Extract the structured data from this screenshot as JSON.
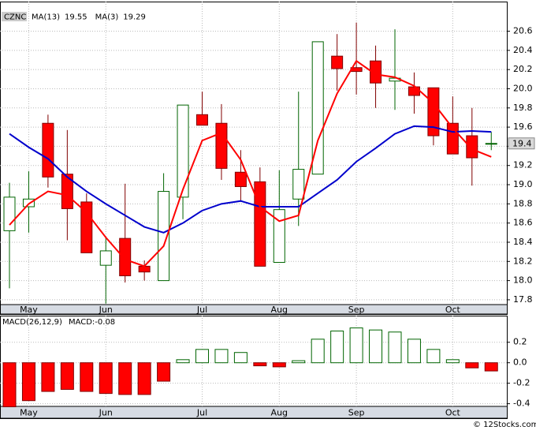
{
  "title": "(CZNC)",
  "watermark": "© 12Stocks.com",
  "chart_data": [
    {
      "type": "candlestick",
      "symbol": "CZNC",
      "categories": [
        null,
        "May",
        null,
        null,
        null,
        "Jun",
        null,
        null,
        null,
        null,
        "Jul",
        null,
        null,
        null,
        "Aug",
        null,
        null,
        null,
        "Sep",
        null,
        null,
        null,
        null,
        "Oct",
        null,
        null
      ],
      "open": [
        18.52,
        18.77,
        19.64,
        19.11,
        18.82,
        18.16,
        18.44,
        18.15,
        18.0,
        18.87,
        19.73,
        19.64,
        19.13,
        19.03,
        18.19,
        18.85,
        19.11,
        20.34,
        20.22,
        20.29,
        20.08,
        20.02,
        20.01,
        19.64,
        19.51,
        19.43
      ],
      "high": [
        19.02,
        19.14,
        19.73,
        19.57,
        18.91,
        18.46,
        19.01,
        18.21,
        19.12,
        19.83,
        19.97,
        19.84,
        19.36,
        19.18,
        19.15,
        19.97,
        20.49,
        20.57,
        20.69,
        20.45,
        20.62,
        20.17,
        20.01,
        19.92,
        19.8,
        19.55
      ],
      "low": [
        17.92,
        18.5,
        18.97,
        18.42,
        18.29,
        17.76,
        17.98,
        18.0,
        18.0,
        18.64,
        19.62,
        19.05,
        18.83,
        18.15,
        18.19,
        18.57,
        19.11,
        19.98,
        19.94,
        19.8,
        19.78,
        19.74,
        19.41,
        19.32,
        18.99,
        19.36
      ],
      "close": [
        18.87,
        18.85,
        19.08,
        18.75,
        18.29,
        18.31,
        18.05,
        18.09,
        18.93,
        19.83,
        19.62,
        19.17,
        18.98,
        18.15,
        18.74,
        19.16,
        20.49,
        20.21,
        20.18,
        20.06,
        20.11,
        19.93,
        19.51,
        19.32,
        19.28,
        19.43
      ],
      "up_color": "#006400",
      "down_color": "#ff0000",
      "series": [
        {
          "name": "MA(13)",
          "color": "#0000cc",
          "legend_value": "19.55",
          "values": [
            19.53,
            19.39,
            19.27,
            19.08,
            18.93,
            18.8,
            18.68,
            18.56,
            18.5,
            18.6,
            18.73,
            18.8,
            18.83,
            18.77,
            18.77,
            18.77,
            18.91,
            19.05,
            19.24,
            19.38,
            19.53,
            19.61,
            19.6,
            19.55,
            19.56,
            19.55
          ]
        },
        {
          "name": "MA(3)",
          "color": "#ff0000",
          "legend_value": "19.29",
          "values": [
            18.58,
            18.8,
            18.93,
            18.89,
            18.71,
            18.45,
            18.22,
            18.15,
            18.36,
            18.95,
            19.46,
            19.54,
            19.26,
            18.77,
            18.62,
            18.68,
            19.46,
            19.95,
            20.29,
            20.15,
            20.12,
            20.03,
            19.85,
            19.59,
            19.37,
            19.29
          ]
        }
      ],
      "last_price_label": "19.4",
      "ylim": [
        17.75,
        20.81
      ],
      "yticks": [
        17.8,
        {
          "value": 18,
          "label": "18.0"
        },
        18.2,
        18.4,
        18.6,
        18.8,
        {
          "value": 19,
          "label": "19.0"
        },
        19.2,
        19.4,
        19.6,
        19.8,
        {
          "value": 20,
          "label": "20.0"
        },
        20.2,
        20.4,
        20.6
      ],
      "grid": true
    },
    {
      "type": "bar",
      "title": "MACD(26,12,9)",
      "subtitle": "MACD:-0.08",
      "categories": [
        null,
        "May",
        null,
        null,
        null,
        "Jun",
        null,
        null,
        null,
        null,
        "Jul",
        null,
        null,
        null,
        "Aug",
        null,
        null,
        null,
        "Sep",
        null,
        null,
        null,
        null,
        "Oct",
        null,
        null
      ],
      "values": [
        -0.43,
        -0.37,
        -0.28,
        -0.26,
        -0.28,
        -0.3,
        -0.31,
        -0.31,
        -0.18,
        0.03,
        0.13,
        0.13,
        0.1,
        -0.03,
        -0.04,
        0.02,
        0.23,
        0.31,
        0.34,
        0.32,
        0.3,
        0.23,
        0.13,
        0.03,
        -0.05,
        -0.08
      ],
      "up_color": "#006400",
      "down_color": "#ff0000",
      "ylim": [
        -0.48,
        0.46
      ],
      "yticks": [
        0.2,
        {
          "value": 0,
          "label": "0.0"
        },
        -0.2,
        -0.4
      ],
      "grid": true
    }
  ]
}
